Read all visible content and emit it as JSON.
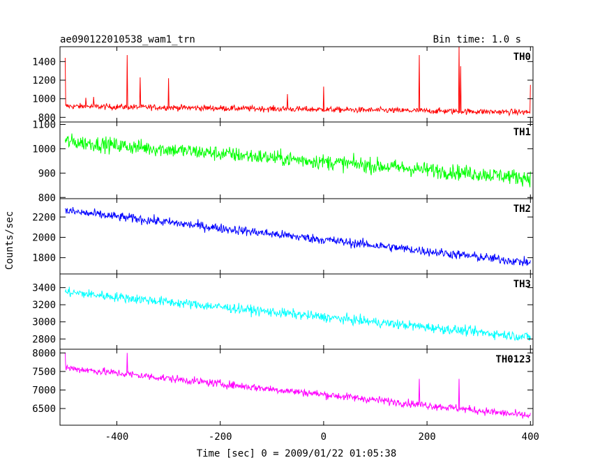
{
  "chart_data": {
    "type": "line",
    "title": "ae090122010538_wam1_trn",
    "subtitle": "Bin time: 1.0 s",
    "xlabel": "Time [sec] 0 = 2009/01/22 01:05:38",
    "ylabel": "Counts/sec",
    "xlim": [
      -510,
      405
    ],
    "x_ticks": [
      -400,
      -200,
      0,
      200,
      400
    ],
    "x_range": [
      -500,
      400
    ],
    "panels": [
      {
        "name": "TH0",
        "color": "#ff0000",
        "ylim": [
          750,
          1560
        ],
        "y_ticks": [
          800,
          1000,
          1200,
          1400
        ],
        "trend": [
          [
            -500,
            920
          ],
          [
            400,
            855
          ]
        ],
        "noise": 45,
        "spikes": [
          [
            -500,
            1440
          ],
          [
            -460,
            1010
          ],
          [
            -445,
            1020
          ],
          [
            -380,
            1470
          ],
          [
            -355,
            1230
          ],
          [
            -300,
            1220
          ],
          [
            -70,
            1050
          ],
          [
            0,
            1130
          ],
          [
            185,
            1470
          ],
          [
            262,
            1560
          ],
          [
            265,
            1350
          ],
          [
            400,
            1150
          ]
        ]
      },
      {
        "name": "TH1",
        "color": "#00ff00",
        "ylim": [
          795,
          1110
        ],
        "y_ticks": [
          800,
          900,
          1000,
          1100
        ],
        "trend": [
          [
            -500,
            1030
          ],
          [
            400,
            880
          ]
        ],
        "noise": 45,
        "spikes": []
      },
      {
        "name": "TH2",
        "color": "#0000ff",
        "ylim": [
          1640,
          2380
        ],
        "y_ticks": [
          1800,
          2000,
          2200
        ],
        "trend": [
          [
            -500,
            2260
          ],
          [
            400,
            1750
          ]
        ],
        "noise": 65,
        "spikes": []
      },
      {
        "name": "TH3",
        "color": "#00ffff",
        "ylim": [
          2680,
          3560
        ],
        "y_ticks": [
          2800,
          3000,
          3200,
          3400
        ],
        "trend": [
          [
            -500,
            3350
          ],
          [
            400,
            2820
          ]
        ],
        "noise": 80,
        "spikes": []
      },
      {
        "name": "TH0123",
        "color": "#ff00ff",
        "ylim": [
          6050,
          8100
        ],
        "y_ticks": [
          6500,
          7000,
          7500,
          8000
        ],
        "trend": [
          [
            -500,
            7600
          ],
          [
            400,
            6300
          ]
        ],
        "noise": 150,
        "spikes": [
          [
            -500,
            8000
          ],
          [
            -380,
            8000
          ],
          [
            185,
            7300
          ],
          [
            262,
            7300
          ]
        ]
      }
    ]
  }
}
